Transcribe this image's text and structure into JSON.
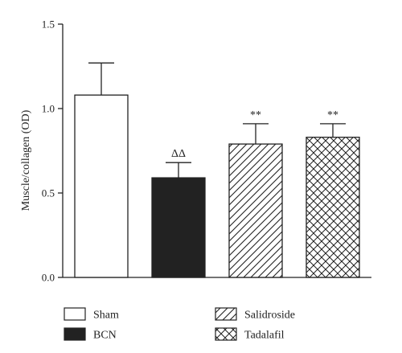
{
  "chart_data": {
    "type": "bar",
    "categories": [
      "Sham",
      "BCN",
      "Salidroside",
      "Tadalafil"
    ],
    "values": [
      1.08,
      0.59,
      0.79,
      0.83
    ],
    "errors": [
      0.19,
      0.09,
      0.12,
      0.08
    ],
    "annotations": [
      "",
      "ΔΔ",
      "**",
      "**"
    ],
    "fills": [
      "white",
      "black",
      "diagonal-hatch",
      "crosshatch"
    ],
    "ylabel": "Muscle/collagen (OD)",
    "ylim": [
      0,
      1.5
    ],
    "yticks": [
      0.0,
      0.5,
      1.0,
      1.5
    ],
    "ytick_labels": [
      "0.0",
      "0.5",
      "1.0",
      "1.5"
    ],
    "grid": false,
    "legend": {
      "placement": "bottom",
      "entries": [
        {
          "label": "Sham",
          "fill": "white"
        },
        {
          "label": "Salidroside",
          "fill": "diagonal-hatch"
        },
        {
          "label": "BCN",
          "fill": "black"
        },
        {
          "label": "Tadalafil",
          "fill": "crosshatch"
        }
      ]
    },
    "colors": {
      "ink": "#222222",
      "background": "#ffffff"
    }
  }
}
